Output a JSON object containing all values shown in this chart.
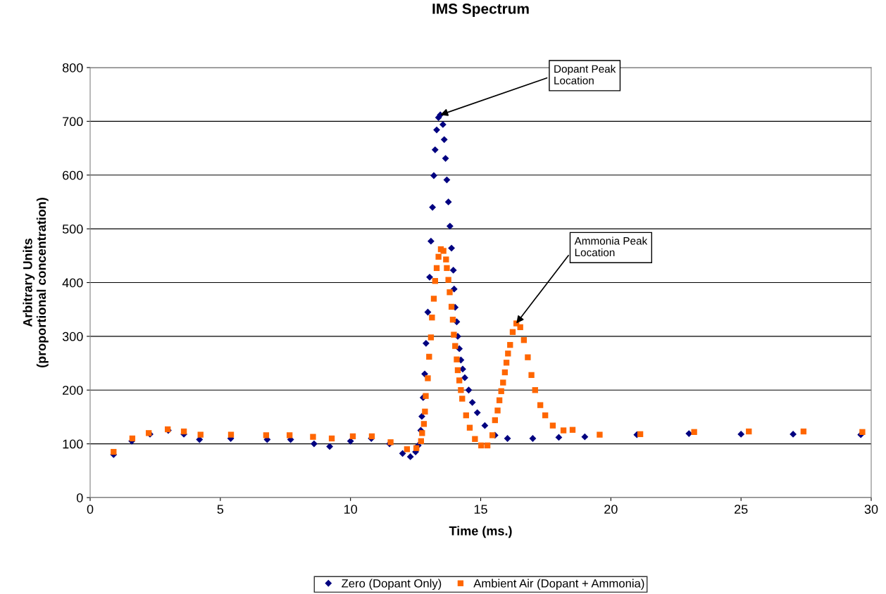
{
  "chart_data": {
    "type": "scatter",
    "title": "IMS Spectrum",
    "xlabel": "Time (ms.)",
    "ylabel": "Arbitrary Units\n(proportional concentration)",
    "xlim": [
      0,
      30
    ],
    "xticks": [
      0,
      5,
      10,
      15,
      20,
      25,
      30
    ],
    "ylim": [
      0,
      800
    ],
    "yticks": [
      0,
      100,
      200,
      300,
      400,
      500,
      600,
      700,
      800
    ],
    "grid": "y",
    "legend": "bottom",
    "annotations": [
      {
        "text": "Dopant Peak\nLocation",
        "x": 13.45,
        "y": 712
      },
      {
        "text": "Ammonia Peak\nLocation",
        "x": 16.37,
        "y": 324
      }
    ],
    "series": [
      {
        "name": "Zero (Dopant Only)",
        "color": "#000080",
        "marker": "diamond",
        "x": [
          0.9,
          1.6,
          2.3,
          3.0,
          3.6,
          4.2,
          5.4,
          6.8,
          7.7,
          8.6,
          9.2,
          10.0,
          10.8,
          11.5,
          12.0,
          12.3,
          12.5,
          12.6,
          12.7,
          12.74,
          12.79,
          12.85,
          12.9,
          12.97,
          13.04,
          13.09,
          13.15,
          13.2,
          13.25,
          13.31,
          13.38,
          13.45,
          13.55,
          13.6,
          13.65,
          13.7,
          13.76,
          13.82,
          13.88,
          13.95,
          13.98,
          14.02,
          14.08,
          14.12,
          14.18,
          14.24,
          14.31,
          14.39,
          14.54,
          14.68,
          14.87,
          15.16,
          15.55,
          16.03,
          17.0,
          18.0,
          19.0,
          21.0,
          23.0,
          25.0,
          27.0,
          29.6
        ],
        "values": [
          80,
          105,
          118,
          125,
          118,
          108,
          110,
          108,
          108,
          100,
          95,
          105,
          110,
          100,
          82,
          76,
          85,
          97,
          125,
          151,
          186,
          230,
          287,
          345,
          410,
          477,
          540,
          599,
          647,
          684,
          707,
          712,
          694,
          666,
          631,
          591,
          550,
          505,
          464,
          423,
          388,
          354,
          327,
          300,
          277,
          256,
          239,
          223,
          200,
          177,
          158,
          134,
          116,
          110,
          110,
          112,
          113,
          117,
          119,
          118,
          118,
          117
        ]
      },
      {
        "name": "Ambient Air (Dopant + Ammonia)",
        "color": "#ff6600",
        "marker": "square",
        "x": [
          0.9,
          1.62,
          2.25,
          2.98,
          3.6,
          4.24,
          5.41,
          6.76,
          7.66,
          8.56,
          9.28,
          10.09,
          10.82,
          11.54,
          12.17,
          12.53,
          12.71,
          12.75,
          12.82,
          12.86,
          12.89,
          12.97,
          13.02,
          13.09,
          13.13,
          13.2,
          13.25,
          13.31,
          13.38,
          13.47,
          13.57,
          13.67,
          13.7,
          13.76,
          13.81,
          13.88,
          13.93,
          13.97,
          14.02,
          14.08,
          14.12,
          14.18,
          14.24,
          14.29,
          14.44,
          14.58,
          14.78,
          15.02,
          15.26,
          15.45,
          15.55,
          15.65,
          15.72,
          15.79,
          15.86,
          15.93,
          15.99,
          16.05,
          16.13,
          16.23,
          16.37,
          16.52,
          16.66,
          16.81,
          16.95,
          17.09,
          17.29,
          17.48,
          17.77,
          18.18,
          18.53,
          19.57,
          21.13,
          23.2,
          25.3,
          27.4,
          29.66
        ],
        "values": [
          85,
          110,
          120,
          127,
          123,
          117,
          117,
          116,
          116,
          113,
          110,
          114,
          114,
          103,
          90,
          92,
          105,
          120,
          137,
          160,
          189,
          222,
          262,
          298,
          335,
          370,
          403,
          427,
          448,
          462,
          459,
          443,
          427,
          405,
          382,
          355,
          331,
          303,
          282,
          257,
          237,
          218,
          200,
          184,
          153,
          130,
          109,
          97,
          97,
          116,
          144,
          162,
          181,
          198,
          214,
          233,
          251,
          268,
          284,
          308,
          324,
          317,
          293,
          261,
          228,
          200,
          172,
          153,
          134,
          125,
          126,
          117,
          118,
          122,
          123,
          123,
          122
        ]
      }
    ]
  }
}
